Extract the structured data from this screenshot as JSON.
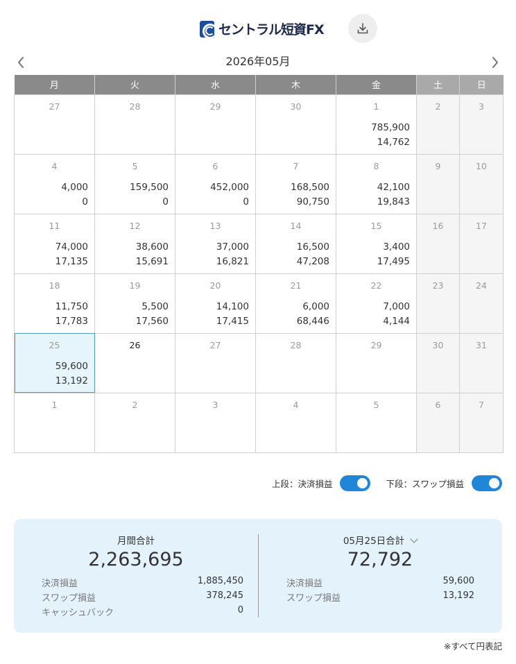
{
  "header": {
    "logo_text": "セントラル短資FX",
    "download_icon": "download-icon"
  },
  "calendar": {
    "month_title": "2026年05月",
    "prev_icon": "chevron-left-icon",
    "next_icon": "chevron-right-icon",
    "weekdays": [
      "月",
      "火",
      "水",
      "木",
      "金",
      "土",
      "日"
    ],
    "weeks": [
      [
        {
          "day": "27",
          "v1": "",
          "v2": ""
        },
        {
          "day": "28",
          "v1": "",
          "v2": ""
        },
        {
          "day": "29",
          "v1": "",
          "v2": ""
        },
        {
          "day": "30",
          "v1": "",
          "v2": ""
        },
        {
          "day": "1",
          "v1": "785,900",
          "v2": "14,762"
        },
        {
          "day": "2",
          "v1": "",
          "v2": ""
        },
        {
          "day": "3",
          "v1": "",
          "v2": ""
        }
      ],
      [
        {
          "day": "4",
          "v1": "4,000",
          "v2": "0"
        },
        {
          "day": "5",
          "v1": "159,500",
          "v2": "0"
        },
        {
          "day": "6",
          "v1": "452,000",
          "v2": "0"
        },
        {
          "day": "7",
          "v1": "168,500",
          "v2": "90,750"
        },
        {
          "day": "8",
          "v1": "42,100",
          "v2": "19,843"
        },
        {
          "day": "9",
          "v1": "",
          "v2": ""
        },
        {
          "day": "10",
          "v1": "",
          "v2": ""
        }
      ],
      [
        {
          "day": "11",
          "v1": "74,000",
          "v2": "17,135"
        },
        {
          "day": "12",
          "v1": "38,600",
          "v2": "15,691"
        },
        {
          "day": "13",
          "v1": "37,000",
          "v2": "16,821"
        },
        {
          "day": "14",
          "v1": "16,500",
          "v2": "47,208"
        },
        {
          "day": "15",
          "v1": "3,400",
          "v2": "17,495"
        },
        {
          "day": "16",
          "v1": "",
          "v2": ""
        },
        {
          "day": "17",
          "v1": "",
          "v2": ""
        }
      ],
      [
        {
          "day": "18",
          "v1": "11,750",
          "v2": "17,783"
        },
        {
          "day": "19",
          "v1": "5,500",
          "v2": "17,560"
        },
        {
          "day": "20",
          "v1": "14,100",
          "v2": "17,415"
        },
        {
          "day": "21",
          "v1": "6,000",
          "v2": "68,446"
        },
        {
          "day": "22",
          "v1": "7,000",
          "v2": "4,144"
        },
        {
          "day": "23",
          "v1": "",
          "v2": ""
        },
        {
          "day": "24",
          "v1": "",
          "v2": ""
        }
      ],
      [
        {
          "day": "25",
          "v1": "59,600",
          "v2": "13,192"
        },
        {
          "day": "26",
          "v1": "",
          "v2": ""
        },
        {
          "day": "27",
          "v1": "",
          "v2": ""
        },
        {
          "day": "28",
          "v1": "",
          "v2": ""
        },
        {
          "day": "29",
          "v1": "",
          "v2": ""
        },
        {
          "day": "30",
          "v1": "",
          "v2": ""
        },
        {
          "day": "31",
          "v1": "",
          "v2": ""
        }
      ],
      [
        {
          "day": "1",
          "v1": "",
          "v2": ""
        },
        {
          "day": "2",
          "v1": "",
          "v2": ""
        },
        {
          "day": "3",
          "v1": "",
          "v2": ""
        },
        {
          "day": "4",
          "v1": "",
          "v2": ""
        },
        {
          "day": "5",
          "v1": "",
          "v2": ""
        },
        {
          "day": "6",
          "v1": "",
          "v2": ""
        },
        {
          "day": "7",
          "v1": "",
          "v2": ""
        }
      ]
    ],
    "selected_day": "25",
    "today_day": "26"
  },
  "toggles": {
    "upper_label": "上段：決済損益",
    "upper_on": true,
    "lower_label": "下段：スワップ損益",
    "lower_on": true,
    "accent_color": "#1f86d9"
  },
  "summary": {
    "monthly": {
      "title": "月間合計",
      "total": "2,263,695",
      "rows": [
        {
          "label": "決済損益",
          "value": "1,885,450"
        },
        {
          "label": "スワップ損益",
          "value": "378,245"
        },
        {
          "label": "キャッシュバック",
          "value": "0"
        }
      ]
    },
    "daily": {
      "title": "05月25日合計",
      "total": "72,792",
      "rows": [
        {
          "label": "決済損益",
          "value": "59,600"
        },
        {
          "label": "スワップ損益",
          "value": "13,192"
        }
      ]
    }
  },
  "footnote": "※すべて円表記"
}
